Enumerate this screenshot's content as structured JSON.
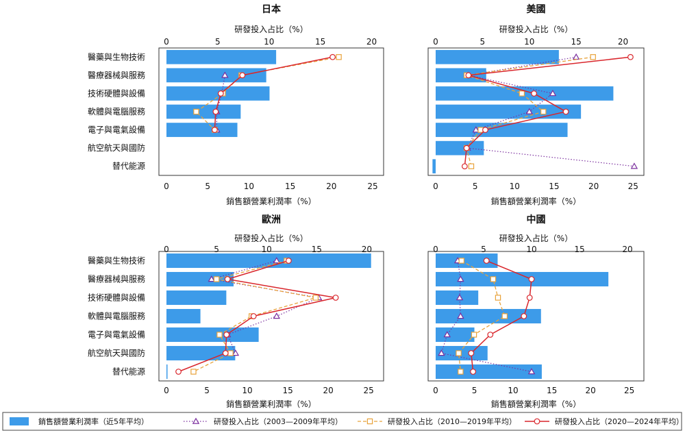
{
  "colors": {
    "bar": "#3d9be9",
    "s2003": "#7b2f9e",
    "s2010": "#e8a23a",
    "s2020": "#d9252b",
    "frame": "#333333"
  },
  "legend": [
    {
      "key": "bar",
      "label": "銷售額營業利潤率（近5年平均）"
    },
    {
      "key": "s2003",
      "label": "研發投入占比（2003—2009年平均）"
    },
    {
      "key": "s2010",
      "label": "研發投入占比（2010—2019年平均）"
    },
    {
      "key": "s2020",
      "label": "研發投入占比（2020—2024年平均）"
    }
  ],
  "chart_data": [
    {
      "type": "bar",
      "title": "日本",
      "top_axis_label": "研發投入占比（%）",
      "bottom_axis_label": "銷售額營業利潤率（%）",
      "top_ticks": [
        0,
        5,
        10,
        15,
        20
      ],
      "bottom_ticks": [
        0,
        5,
        10,
        15,
        20,
        25
      ],
      "top_lim": [
        0,
        20.5
      ],
      "bottom_lim": [
        0,
        25.5
      ],
      "categories": [
        "醫藥與生物技術",
        "醫療器械與服務",
        "技術硬體與設備",
        "軟體與電腦服務",
        "電子與電氣設備",
        "航空航天與國防",
        "替代能源"
      ],
      "bars": [
        13.3,
        12.1,
        12.5,
        9.0,
        8.6,
        null,
        null
      ],
      "series": [
        {
          "key": "s2003",
          "values": [
            null,
            5.7,
            5.4,
            4.9,
            4.9,
            null,
            null
          ]
        },
        {
          "key": "s2010",
          "values": [
            16.8,
            7.3,
            5.5,
            2.9,
            4.7,
            null,
            null
          ]
        },
        {
          "key": "s2020",
          "values": [
            16.2,
            7.4,
            5.3,
            4.8,
            4.7,
            null,
            null
          ]
        }
      ]
    },
    {
      "type": "bar",
      "title": "美國",
      "top_axis_label": "研發投入占比（%）",
      "bottom_axis_label": "銷售額營業利潤率（%）",
      "top_ticks": [
        0,
        5,
        10,
        15,
        20
      ],
      "bottom_ticks": [
        0,
        5,
        10,
        15,
        20,
        25
      ],
      "top_lim": [
        0,
        21.5
      ],
      "bottom_lim": [
        0,
        25.5
      ],
      "categories": [
        "醫藥與生物技術",
        "醫療器械與服務",
        "技術硬體與設備",
        "軟體與電腦服務",
        "電子與電氣設備",
        "航空航天與國防",
        "替代能源"
      ],
      "bars": [
        15.6,
        6.4,
        22.5,
        18.4,
        16.7,
        6.1,
        -0.4
      ],
      "series": [
        {
          "key": "s2003",
          "values": [
            15.0,
            3.5,
            12.5,
            10.0,
            4.3,
            3.4,
            21.2
          ]
        },
        {
          "key": "s2010",
          "values": [
            16.8,
            3.3,
            9.2,
            11.5,
            4.8,
            3.3,
            3.8
          ]
        },
        {
          "key": "s2020",
          "values": [
            20.8,
            3.5,
            10.5,
            13.9,
            5.3,
            3.3,
            3.1
          ]
        }
      ]
    },
    {
      "type": "bar",
      "title": "歐洲",
      "top_axis_label": "研發投入占比（%）",
      "bottom_axis_label": "銷售額營業利潤率（%）",
      "top_ticks": [
        0,
        5,
        10,
        15,
        20
      ],
      "bottom_ticks": [
        0,
        5,
        10,
        15,
        20,
        25
      ],
      "top_lim": [
        0,
        21.0
      ],
      "bottom_lim": [
        0,
        26.0
      ],
      "categories": [
        "醫藥與生物技術",
        "醫療器械與服務",
        "技術硬體與設備",
        "軟體與電腦服務",
        "電子與電氣設備",
        "航空航天與國防",
        "替代能源"
      ],
      "bars": [
        25.3,
        8.3,
        7.4,
        4.2,
        11.4,
        8.5,
        0.1
      ],
      "series": [
        {
          "key": "s2003",
          "values": [
            11.0,
            4.5,
            15.2,
            11.0,
            6.1,
            6.9,
            null
          ]
        },
        {
          "key": "s2010",
          "values": [
            12.0,
            5.0,
            14.9,
            8.5,
            5.3,
            6.4,
            2.7
          ]
        },
        {
          "key": "s2020",
          "values": [
            12.2,
            6.1,
            16.9,
            8.7,
            6.0,
            5.9,
            1.2
          ]
        }
      ]
    },
    {
      "type": "bar",
      "title": "中國",
      "top_axis_label": "研發投入占比（%）",
      "bottom_axis_label": "銷售額營業利潤率（%）",
      "top_ticks": [
        0,
        5,
        10,
        15,
        20
      ],
      "bottom_ticks": [
        0,
        5,
        10,
        15,
        20,
        25
      ],
      "top_lim": [
        0,
        21.0
      ],
      "bottom_lim": [
        0,
        26.0
      ],
      "categories": [
        "醫藥與生物技術",
        "醫療器械與服務",
        "技術硬體與設備",
        "軟體與電腦服務",
        "電子與電氣設備",
        "航空航天與國防",
        "替代能源"
      ],
      "bars": [
        8.0,
        22.3,
        5.5,
        13.6,
        5.0,
        6.7,
        13.7
      ],
      "series": [
        {
          "key": "s2003",
          "values": [
            2.3,
            2.6,
            2.5,
            2.6,
            1.2,
            0.6,
            10.0
          ]
        },
        {
          "key": "s2010",
          "values": [
            2.7,
            6.0,
            6.5,
            7.2,
            4.0,
            2.4,
            2.6
          ]
        },
        {
          "key": "s2020",
          "values": [
            5.3,
            10.0,
            9.8,
            9.2,
            5.7,
            3.7,
            3.9
          ]
        }
      ]
    }
  ]
}
